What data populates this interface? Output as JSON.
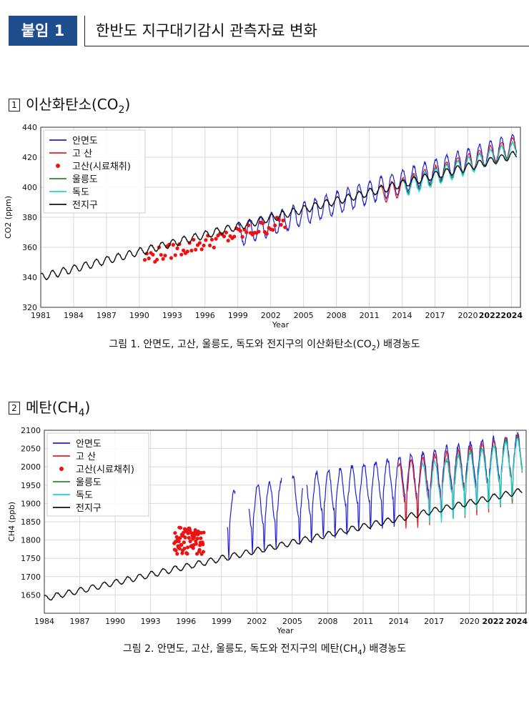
{
  "header": {
    "badge": "붙임 1",
    "title": "한반도 지구대기감시 관측자료 변화"
  },
  "section1": {
    "number": "1",
    "title_main": "이산화탄소(CO",
    "title_sub": "2",
    "title_end": ")"
  },
  "section2": {
    "number": "2",
    "title_main": "메탄(CH",
    "title_sub": "4",
    "title_end": ")"
  },
  "caption1": {
    "main": "그림 1. 안면도, 고산, 울릉도, 독도와 전지구의 이산화탄소(CO",
    "sub": "2",
    "end": ") 배경농도"
  },
  "caption2": {
    "main": "그림 2. 안면도, 고산, 울릉도, 독도와 전지구의 메탄(CH",
    "sub": "4",
    "end": ") 배경농도"
  },
  "chart_data": [
    {
      "type": "line",
      "xlabel": "Year",
      "ylabel": "CO2 (ppm)",
      "xlim": [
        1981,
        2024.8
      ],
      "ylim": [
        320,
        440
      ],
      "x_ticks": [
        "1981",
        "1984",
        "1987",
        "1990",
        "1993",
        "1996",
        "1999",
        "2002",
        "2005",
        "2008",
        "2011",
        "2014",
        "2017",
        "2020",
        "2022",
        "2024"
      ],
      "y_ticks": [
        "320",
        "340",
        "360",
        "380",
        "400",
        "420",
        "440"
      ],
      "grid": true,
      "legend_position": "top-left",
      "series": [
        {
          "name": "안면도",
          "color": "#1f1fd6",
          "style": "line",
          "years": [
            1999,
            2024.5
          ],
          "baseline": [
            368,
            429
          ],
          "amplitude": 7.5
        },
        {
          "name": "고 산",
          "color": "#e82020",
          "style": "line",
          "years": [
            2012,
            2024.5
          ],
          "baseline": [
            395,
            428
          ],
          "amplitude": 6
        },
        {
          "name": "고산(시료채취)",
          "color": "#ee1111",
          "style": "scatter",
          "years": [
            1990.5,
            2003.5
          ],
          "baseline": [
            353,
            377
          ],
          "amplitude": 5
        },
        {
          "name": "울릉도",
          "color": "#2a8a2a",
          "style": "line",
          "years": [
            2014,
            2024.5
          ],
          "baseline": [
            400,
            426
          ],
          "amplitude": 5
        },
        {
          "name": "독도",
          "color": "#17d9d9",
          "style": "line",
          "years": [
            2014,
            2024.5
          ],
          "baseline": [
            399,
            426
          ],
          "amplitude": 5.5
        },
        {
          "name": "전지구",
          "color": "#111111",
          "style": "line",
          "years": [
            1981,
            2024.5
          ],
          "baseline": [
            340,
            422
          ],
          "amplitude": 2.5
        }
      ]
    },
    {
      "type": "line",
      "xlabel": "Year",
      "ylabel": "CH4 (ppb)",
      "xlim": [
        1984,
        2024.8
      ],
      "ylim": [
        1600,
        2100
      ],
      "x_ticks": [
        "1984",
        "1987",
        "1990",
        "1993",
        "1996",
        "1999",
        "2002",
        "2005",
        "2008",
        "2011",
        "2014",
        "2017",
        "2020",
        "2022",
        "2024"
      ],
      "y_ticks": [
        "1650",
        "1700",
        "1750",
        "1800",
        "1850",
        "1900",
        "1950",
        "2000",
        "2050",
        "2100"
      ],
      "grid": true,
      "legend_position": "top-left",
      "series": [
        {
          "name": "안면도",
          "color": "#1f1fd6",
          "style": "line",
          "years": [
            1999.5,
            2024.5
          ],
          "baseline": [
            1880,
            2040
          ],
          "amplitude": 55
        },
        {
          "name": "고 산",
          "color": "#e82020",
          "style": "line",
          "years": [
            2014,
            2024.5
          ],
          "baseline": [
            1955,
            2030
          ],
          "amplitude": 55
        },
        {
          "name": "고산(시료채취)",
          "color": "#ee1111",
          "style": "scatter",
          "years": [
            1995,
            1997.5
          ],
          "baseline": [
            1800,
            1800
          ],
          "amplitude": 40
        },
        {
          "name": "울릉도",
          "color": "#2a8a2a",
          "style": "line",
          "years": [
            2018,
            2024.5
          ],
          "baseline": [
            1970,
            2035
          ],
          "amplitude": 50
        },
        {
          "name": "독도",
          "color": "#17d9d9",
          "style": "line",
          "years": [
            2016,
            2024.5
          ],
          "baseline": [
            1955,
            2030
          ],
          "amplitude": 50
        },
        {
          "name": "전지구",
          "color": "#111111",
          "style": "line",
          "years": [
            1984,
            2024.5
          ],
          "baseline": [
            1640,
            1935
          ],
          "amplitude": 8
        }
      ]
    }
  ]
}
